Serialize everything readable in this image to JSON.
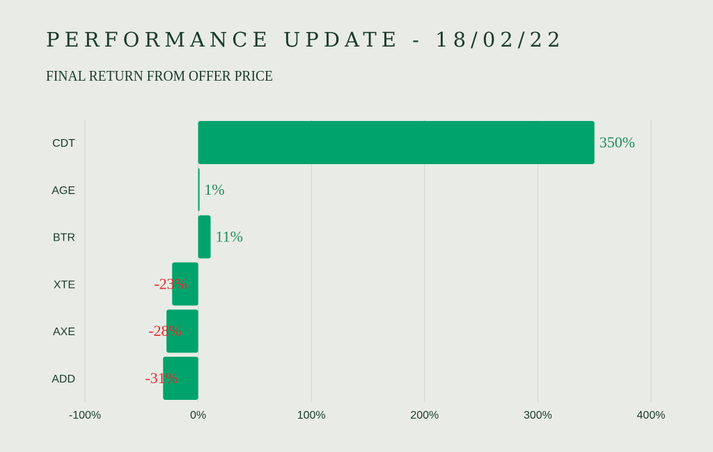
{
  "title": "PERFORMANCE UPDATE - 18/02/22",
  "subtitle": "FINAL RETURN FROM OFFER PRICE",
  "colors": {
    "background": "#e9ece6",
    "bar": "#00a36c",
    "positive_label": "#1e8a5a",
    "negative_label": "#e8292a",
    "text": "#1c3a2c",
    "grid": "#cfd3cc"
  },
  "chart_data": {
    "type": "bar",
    "orientation": "horizontal",
    "categories": [
      "CDT",
      "AGE",
      "BTR",
      "XTE",
      "AXE",
      "ADD"
    ],
    "values": [
      350,
      1,
      11,
      -23,
      -28,
      -31
    ],
    "value_labels": [
      "350%",
      "1%",
      "11%",
      "-23%",
      "-28%",
      "-31%"
    ],
    "xlim": [
      -100,
      400
    ],
    "xticks": [
      -100,
      0,
      100,
      200,
      300,
      400
    ],
    "xtick_labels": [
      "-100%",
      "0%",
      "100%",
      "200%",
      "300%",
      "400%"
    ],
    "grid": true
  }
}
